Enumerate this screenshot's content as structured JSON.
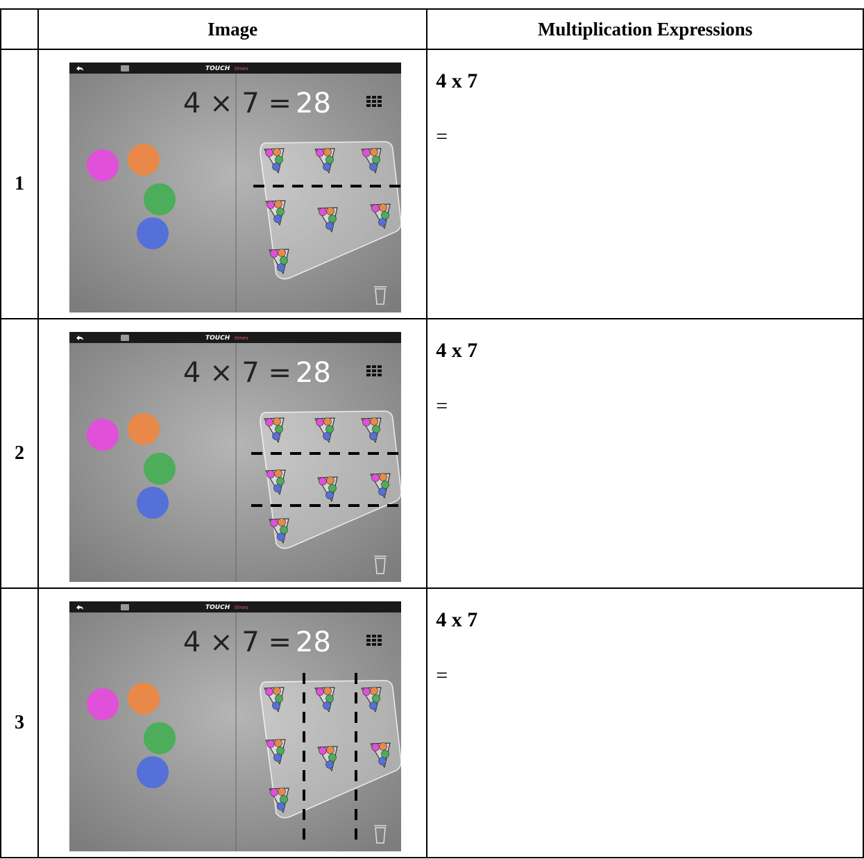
{
  "table": {
    "header": {
      "image": "Image",
      "expressions": "Multiplication Expressions"
    },
    "rows": [
      {
        "number": "1",
        "image": {
          "app_title": "TOUCH",
          "app_subtitle": "times",
          "equation": "4 × 7 =",
          "result": "28"
        },
        "expression": "4 x 7",
        "equals": "="
      },
      {
        "number": "2",
        "image": {
          "app_title": "TOUCH",
          "app_subtitle": "times",
          "equation": "4 × 7 =",
          "result": "28"
        },
        "expression": "4 x 7",
        "equals": "="
      },
      {
        "number": "3",
        "image": {
          "app_title": "TOUCH",
          "app_subtitle": "times",
          "equation": "4 × 7 =",
          "result": "28"
        },
        "expression": "4 x 7",
        "equals": "="
      }
    ]
  }
}
